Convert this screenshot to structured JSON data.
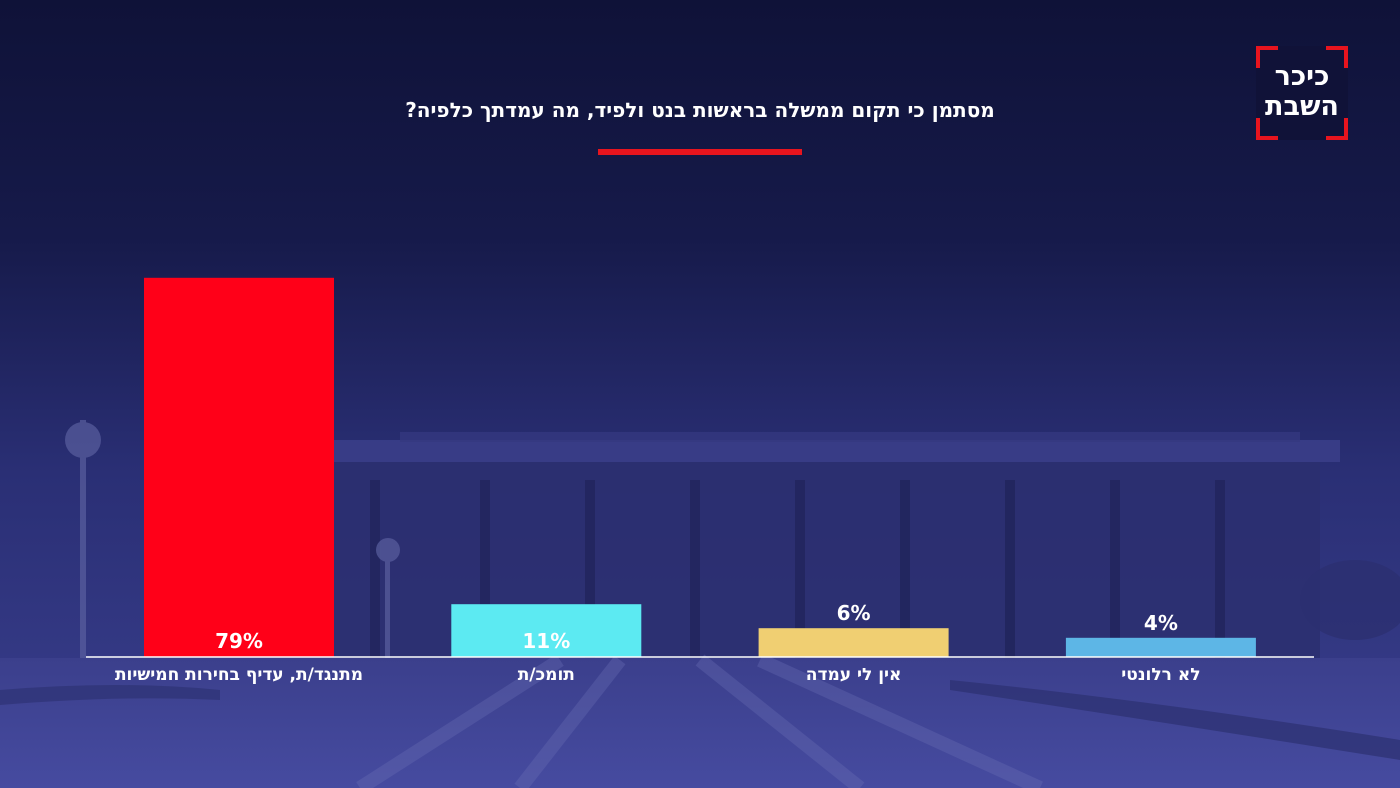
{
  "brand": {
    "logo_line1": "כיכר",
    "logo_line2": "השבת",
    "accent_color": "#e8141e"
  },
  "chart_data": {
    "type": "bar",
    "title": "מסתמן כי תקום ממשלה בראשות בנט ולפיד, מה עמדתך כלפיה?",
    "categories": [
      "מתנגד/ת, עדיף בחירות חמישיות",
      "תומכ/ת",
      "אין לי עמדה",
      "לא רלונטי"
    ],
    "values": [
      79,
      11,
      6,
      4
    ],
    "value_labels": [
      "79%",
      "11%",
      "6%",
      "4%"
    ],
    "colors": [
      "#ff0018",
      "#5ceaf2",
      "#f0cf72",
      "#5db6e6"
    ],
    "ylim": [
      0,
      100
    ],
    "grid": false,
    "legend": "none"
  }
}
